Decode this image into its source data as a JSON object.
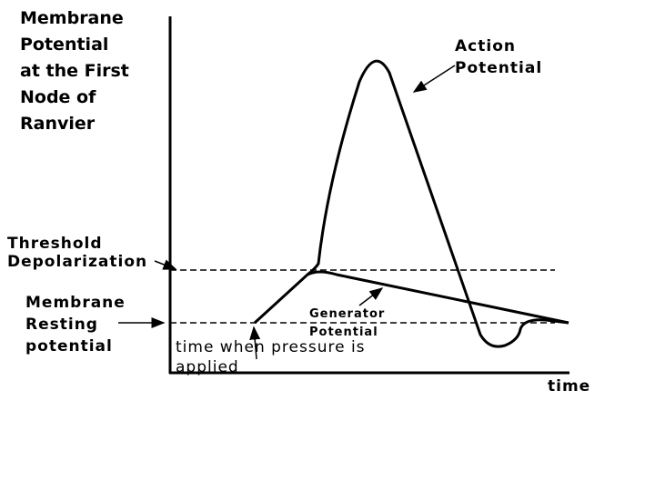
{
  "y_axis_label": [
    "Membrane",
    "Potential",
    "at the First",
    "Node of",
    "Ranvier"
  ],
  "x_axis_label": "time",
  "action_potential": [
    "Action",
    "Potential"
  ],
  "threshold": [
    "Threshold",
    "Depolarization"
  ],
  "resting": [
    "Membrane",
    "Resting",
    "potential"
  ],
  "generator": [
    "Generator",
    "Potential"
  ],
  "stimulus": [
    "time when pressure is",
    "applied"
  ]
}
